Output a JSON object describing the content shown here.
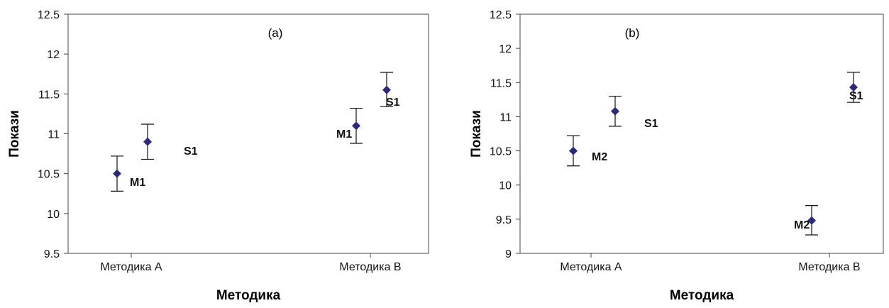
{
  "chart_data": [
    {
      "type": "scatter",
      "panel_label": "(a)",
      "categories": [
        "Методика A",
        "Методика B"
      ],
      "xlabel": "Методика",
      "ylabel": "Покази",
      "ylim": [
        9.5,
        12.5
      ],
      "yticks": [
        "9.5",
        "10",
        "10.5",
        "11",
        "11.5",
        "12",
        "12.5"
      ],
      "marker_color": "#2b2a78",
      "points": [
        {
          "label": "M1",
          "category": "Методика A",
          "y": 10.5,
          "err_low": 10.28,
          "err_high": 10.72
        },
        {
          "label": "S1",
          "category": "Методика A",
          "y": 10.9,
          "err_low": 10.68,
          "err_high": 11.12
        },
        {
          "label": "M1",
          "category": "Методика B",
          "y": 11.1,
          "err_low": 10.88,
          "err_high": 11.32
        },
        {
          "label": "S1",
          "category": "Методика B",
          "y": 11.55,
          "err_low": 11.34,
          "err_high": 11.77
        }
      ]
    },
    {
      "type": "scatter",
      "panel_label": "(b)",
      "categories": [
        "Методика A",
        "Методика B"
      ],
      "xlabel": "Методика",
      "ylabel": "Покази",
      "ylim": [
        9,
        12.5
      ],
      "yticks": [
        "9",
        "9.5",
        "10",
        "10.5",
        "11",
        "11.5",
        "12",
        "12.5"
      ],
      "marker_color": "#2b2a78",
      "points": [
        {
          "label": "M2",
          "category": "Методика A",
          "y": 10.5,
          "err_low": 10.28,
          "err_high": 10.72
        },
        {
          "label": "S1",
          "category": "Методика A",
          "y": 11.08,
          "err_low": 10.86,
          "err_high": 11.3
        },
        {
          "label": "M2",
          "category": "Методика B",
          "y": 9.48,
          "err_low": 9.27,
          "err_high": 9.7
        },
        {
          "label": "S1",
          "category": "Методика B",
          "y": 11.43,
          "err_low": 11.21,
          "err_high": 11.65
        }
      ]
    }
  ]
}
